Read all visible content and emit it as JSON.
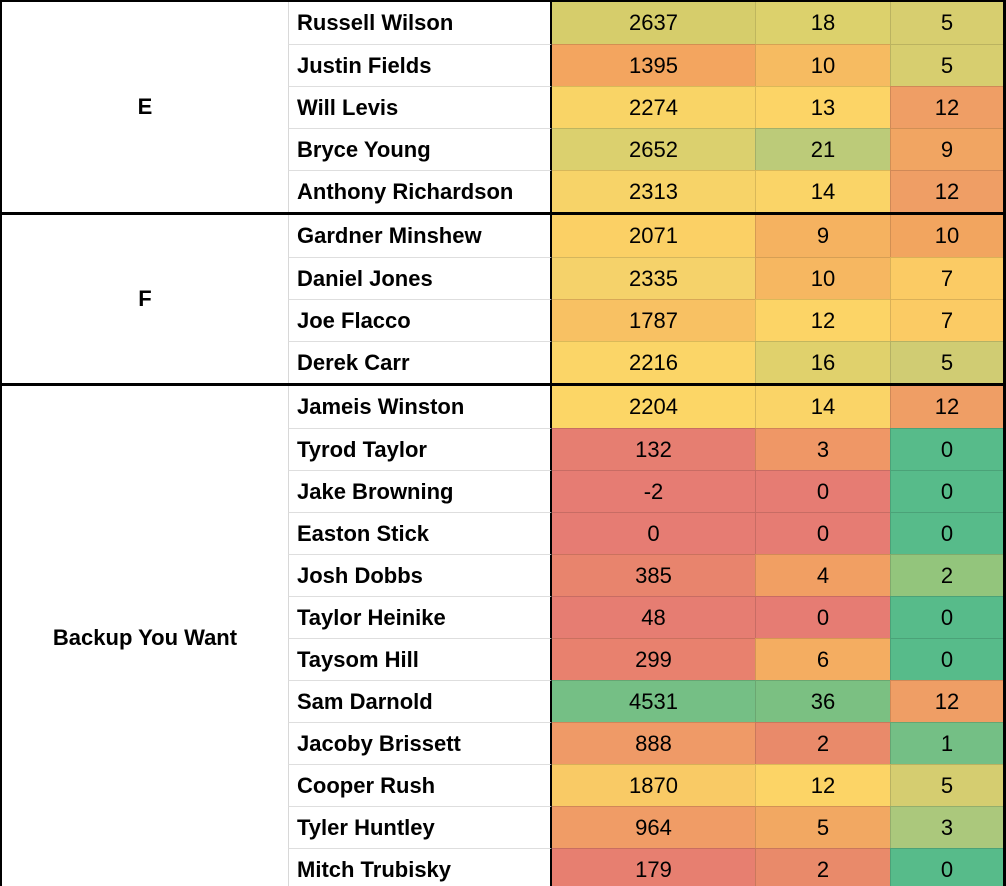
{
  "table": {
    "sections": [
      {
        "tier": "E",
        "rows": [
          {
            "player": "Russell Wilson",
            "stats": [
              "2637",
              "18",
              "5"
            ],
            "stat_colors": [
              "#d6cd6b",
              "#dcd16c",
              "#d7ce6f"
            ]
          },
          {
            "player": "Justin Fields",
            "stats": [
              "1395",
              "10",
              "5"
            ],
            "stat_colors": [
              "#f3a55f",
              "#f6bb61",
              "#d7ce6f"
            ]
          },
          {
            "player": "Will Levis",
            "stats": [
              "2274",
              "13",
              "12"
            ],
            "stat_colors": [
              "#f9d466",
              "#fcd466",
              "#ef9e65"
            ]
          },
          {
            "player": "Bryce Young",
            "stats": [
              "2652",
              "21",
              "9"
            ],
            "stat_colors": [
              "#dbd06e",
              "#bccb79",
              "#f1a562"
            ]
          },
          {
            "player": "Anthony Richardson",
            "stats": [
              "2313",
              "14",
              "12"
            ],
            "stat_colors": [
              "#f7d368",
              "#fad467",
              "#ef9e65"
            ]
          }
        ]
      },
      {
        "tier": "F",
        "rows": [
          {
            "player": "Gardner Minshew",
            "stats": [
              "2071",
              "9",
              "10"
            ],
            "stat_colors": [
              "#fbd065",
              "#f5b260",
              "#f2a55f"
            ]
          },
          {
            "player": "Daniel Jones",
            "stats": [
              "2335",
              "10",
              "7"
            ],
            "stat_colors": [
              "#f5d26a",
              "#f6b761",
              "#fbcb64"
            ]
          },
          {
            "player": "Joe Flacco",
            "stats": [
              "1787",
              "12",
              "7"
            ],
            "stat_colors": [
              "#f8c163",
              "#fcd466",
              "#fbcb64"
            ]
          },
          {
            "player": "Derek Carr",
            "stats": [
              "2216",
              "16",
              "5"
            ],
            "stat_colors": [
              "#fbd567",
              "#e0d16c",
              "#d0cc73"
            ]
          }
        ]
      },
      {
        "tier": "Backup You Want",
        "rows": [
          {
            "player": "Jameis Winston",
            "stats": [
              "2204",
              "14",
              "12"
            ],
            "stat_colors": [
              "#fcd666",
              "#fad467",
              "#ef9e65"
            ]
          },
          {
            "player": "Tyrod Taylor",
            "stats": [
              "132",
              "3",
              "0"
            ],
            "stat_colors": [
              "#e67e71",
              "#ef9766",
              "#57bb8a"
            ]
          },
          {
            "player": "Jake Browning",
            "stats": [
              "-2",
              "0",
              "0"
            ],
            "stat_colors": [
              "#e67c73",
              "#e67c73",
              "#57bb8a"
            ]
          },
          {
            "player": "Easton Stick",
            "stats": [
              "0",
              "0",
              "0"
            ],
            "stat_colors": [
              "#e67c73",
              "#e67c73",
              "#57bb8a"
            ]
          },
          {
            "player": "Josh Dobbs",
            "stats": [
              "385",
              "4",
              "2"
            ],
            "stat_colors": [
              "#e8846d",
              "#f19f63",
              "#93c57c"
            ]
          },
          {
            "player": "Taylor Heinike",
            "stats": [
              "48",
              "0",
              "0"
            ],
            "stat_colors": [
              "#e67d72",
              "#e67c73",
              "#57bb8a"
            ]
          },
          {
            "player": "Taysom Hill",
            "stats": [
              "299",
              "6",
              "0"
            ],
            "stat_colors": [
              "#e8816e",
              "#f4ad61",
              "#57bb8a"
            ]
          },
          {
            "player": "Sam Darnold",
            "stats": [
              "4531",
              "36",
              "12"
            ],
            "stat_colors": [
              "#75bf85",
              "#7bc082",
              "#ef9e65"
            ]
          },
          {
            "player": "Jacoby Brissett",
            "stats": [
              "888",
              "2",
              "1"
            ],
            "stat_colors": [
              "#ef9a67",
              "#e98a6a",
              "#74bf85"
            ]
          },
          {
            "player": "Cooper Rush",
            "stats": [
              "1870",
              "12",
              "5"
            ],
            "stat_colors": [
              "#f9ca65",
              "#fcd466",
              "#d5cd70"
            ]
          },
          {
            "player": "Tyler Huntley",
            "stats": [
              "964",
              "5",
              "3"
            ],
            "stat_colors": [
              "#f09c66",
              "#f2a862",
              "#abc87c"
            ]
          },
          {
            "player": "Mitch Trubisky",
            "stats": [
              "179",
              "2",
              "0"
            ],
            "stat_colors": [
              "#e77f70",
              "#e98a6a",
              "#57bb8a"
            ]
          }
        ]
      }
    ],
    "partial_bottom_row_colors": [
      "#e8806d",
      "#ee9d66",
      "#57bb8a"
    ],
    "colors": {
      "scale_low": "#e67c73",
      "scale_mid": "#ffd666",
      "scale_high": "#57bb8a",
      "border": "#000000",
      "cell_bg": "#ffffff"
    }
  }
}
